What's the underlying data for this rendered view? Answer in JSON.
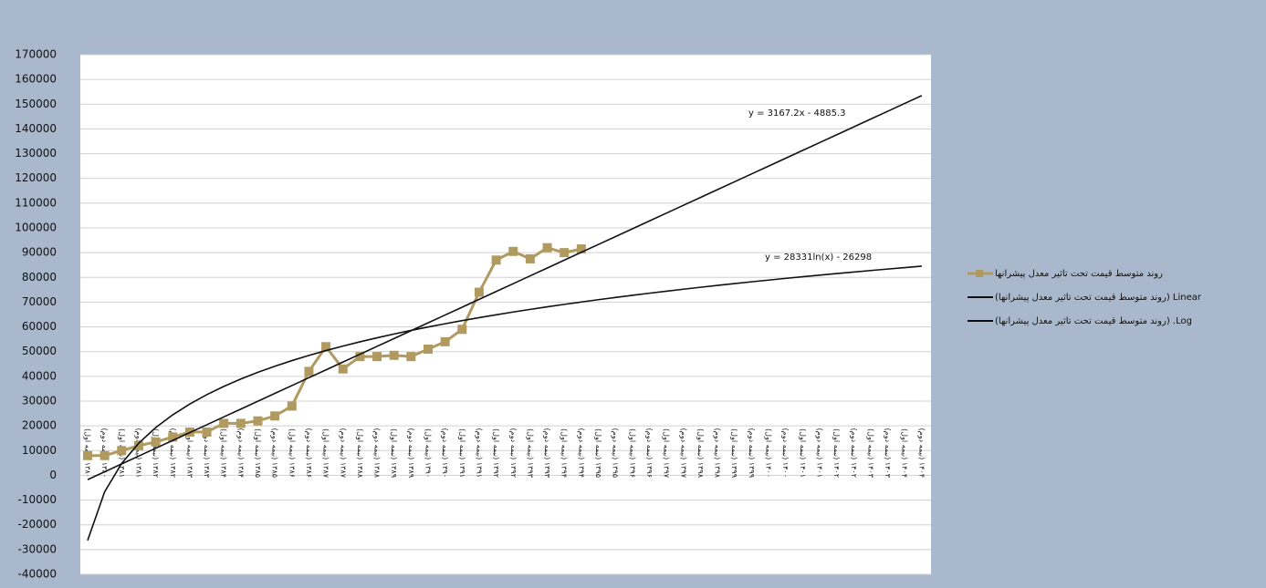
{
  "chart_data": {
    "type": "line",
    "categories": [
      "۱۳۸۰ (نیمه اول)",
      "۱۳۸۰ (نیمه دوم)",
      "۱۳۸۱ (نیمه اول)",
      "۱۳۸۱ (نیمه دوم)",
      "۱۳۸۲ (نیمه اول)",
      "۱۳۸۲ (نیمه دوم)",
      "۱۳۸۳ (نیمه اول)",
      "۱۳۸۳ (نیمه دوم)",
      "۱۳۸۴ (نیمه اول)",
      "۱۳۸۴ (نیمه دوم)",
      "۱۳۸۵ (نیمه اول)",
      "۱۳۸۵ (نیمه دوم)",
      "۱۳۸۶ (نیمه اول)",
      "۱۳۸۶ (نیمه دوم)",
      "۱۳۸۷ (نیمه اول)",
      "۱۳۸۷ (نیمه دوم)",
      "۱۳۸۸ (نیمه اول)",
      "۱۳۸۸ (نیمه دوم)",
      "۱۳۸۹ (نیمه اول)",
      "۱۳۸۹ (نیمه دوم)",
      "۱۳۹۰ (نیمه اول)",
      "۱۳۹۰ (نیمه دوم)",
      "۱۳۹۱ (نیمه اول)",
      "۱۳۹۱ (نیمه دوم)",
      "۱۳۹۲ (نیمه اول)",
      "۱۳۹۲ (نیمه دوم)",
      "۱۳۹۳ (نیمه اول)",
      "۱۳۹۳ (نیمه دوم)",
      "۱۳۹۴ (نیمه اول)",
      "۱۳۹۴ (نیمه دوم)",
      "۱۳۹۵ (نیمه اول)",
      "۱۳۹۵ (نیمه دوم)",
      "۱۳۹۶ (نیمه اول)",
      "۱۳۹۶ (نیمه دوم)",
      "۱۳۹۷ (نیمه اول)",
      "۱۳۹۷ (نیمه دوم)",
      "۱۳۹۸ (نیمه اول)",
      "۱۳۹۸ (نیمه دوم)",
      "۱۳۹۹ (نیمه اول)",
      "۱۳۹۹ (نیمه دوم)",
      "۱۴۰۰ (نیمه اول)",
      "۱۴۰۰ (نیمه دوم)",
      "۱۴۰۱ (نیمه اول)",
      "۱۴۰۱ (نیمه دوم)",
      "۱۴۰۲ (نیمه اول)",
      "۱۴۰۲ (نیمه دوم)",
      "۱۴۰۳ (نیمه اول)",
      "۱۴۰۳ (نیمه دوم)",
      "۱۴۰۴ (نیمه اول)",
      "۱۴۰۴ (نیمه دوم)"
    ],
    "series": [
      {
        "name": "روند متوسط قیمت تحت تاثیر معدل پیشرانها",
        "color": "#b09a60",
        "marker": "square",
        "values": [
          8000,
          8000,
          10000,
          12000,
          13500,
          15500,
          17500,
          17500,
          21000,
          21000,
          22000,
          24000,
          28000,
          42000,
          52000,
          43000,
          48000,
          48000,
          48500,
          48000,
          51000,
          54000,
          59000,
          74000,
          87000,
          90500,
          87500,
          92000,
          90000,
          91500,
          null,
          null,
          null,
          null,
          null,
          null,
          null,
          null,
          null,
          null,
          null,
          null,
          null,
          null,
          null,
          null,
          null,
          null,
          null,
          null
        ]
      },
      {
        "name": "Linear (روند متوسط قیمت تحت تاثیر معدل پیشرانها)",
        "color": "#111111",
        "marker": "none",
        "values": [
          -1718,
          1449,
          4616,
          7784,
          10951,
          14118,
          17285,
          20452,
          23620,
          26787,
          29954,
          33121,
          36288,
          39456,
          42623,
          45790,
          48957,
          52124,
          55292,
          58459,
          61626,
          64793,
          67960,
          71128,
          74295,
          77462,
          80629,
          83796,
          86964,
          90131,
          93298,
          96465,
          99632,
          102800,
          105967,
          109134,
          112301,
          115468,
          118636,
          121803,
          124970,
          128137,
          131304,
          134472,
          137639,
          140806,
          143973,
          147140,
          150308,
          153475
        ]
      },
      {
        "name": "Log. (روند متوسط قیمت تحت تاثیر معدل پیشرانها)",
        "color": "#111111",
        "marker": "none",
        "values": [
          -26298,
          -6660,
          4827,
          12977,
          19299,
          24464,
          28832,
          32615,
          35952,
          38937,
          41637,
          44102,
          46370,
          48469,
          50424,
          52252,
          53970,
          55589,
          57121,
          58574,
          59956,
          61274,
          62534,
          63740,
          64896,
          66007,
          67076,
          68107,
          69101,
          70061,
          70990,
          71890,
          72762,
          73607,
          74429,
          75227,
          76003,
          76759,
          77494,
          78212,
          78911,
          79594,
          80261,
          80912,
          81549,
          82171,
          82781,
          83377,
          83961,
          84534
        ]
      }
    ],
    "annotations": [
      "y = 3167.2x - 4885.3",
      "y = 28331ln(x) - 26298"
    ],
    "ylim": [
      -40000,
      170000
    ],
    "yticks": [
      -40000,
      -30000,
      -20000,
      -10000,
      0,
      10000,
      20000,
      30000,
      40000,
      50000,
      60000,
      70000,
      80000,
      90000,
      100000,
      110000,
      120000,
      130000,
      140000,
      150000,
      160000,
      170000
    ],
    "grid": true,
    "legend": "right"
  }
}
